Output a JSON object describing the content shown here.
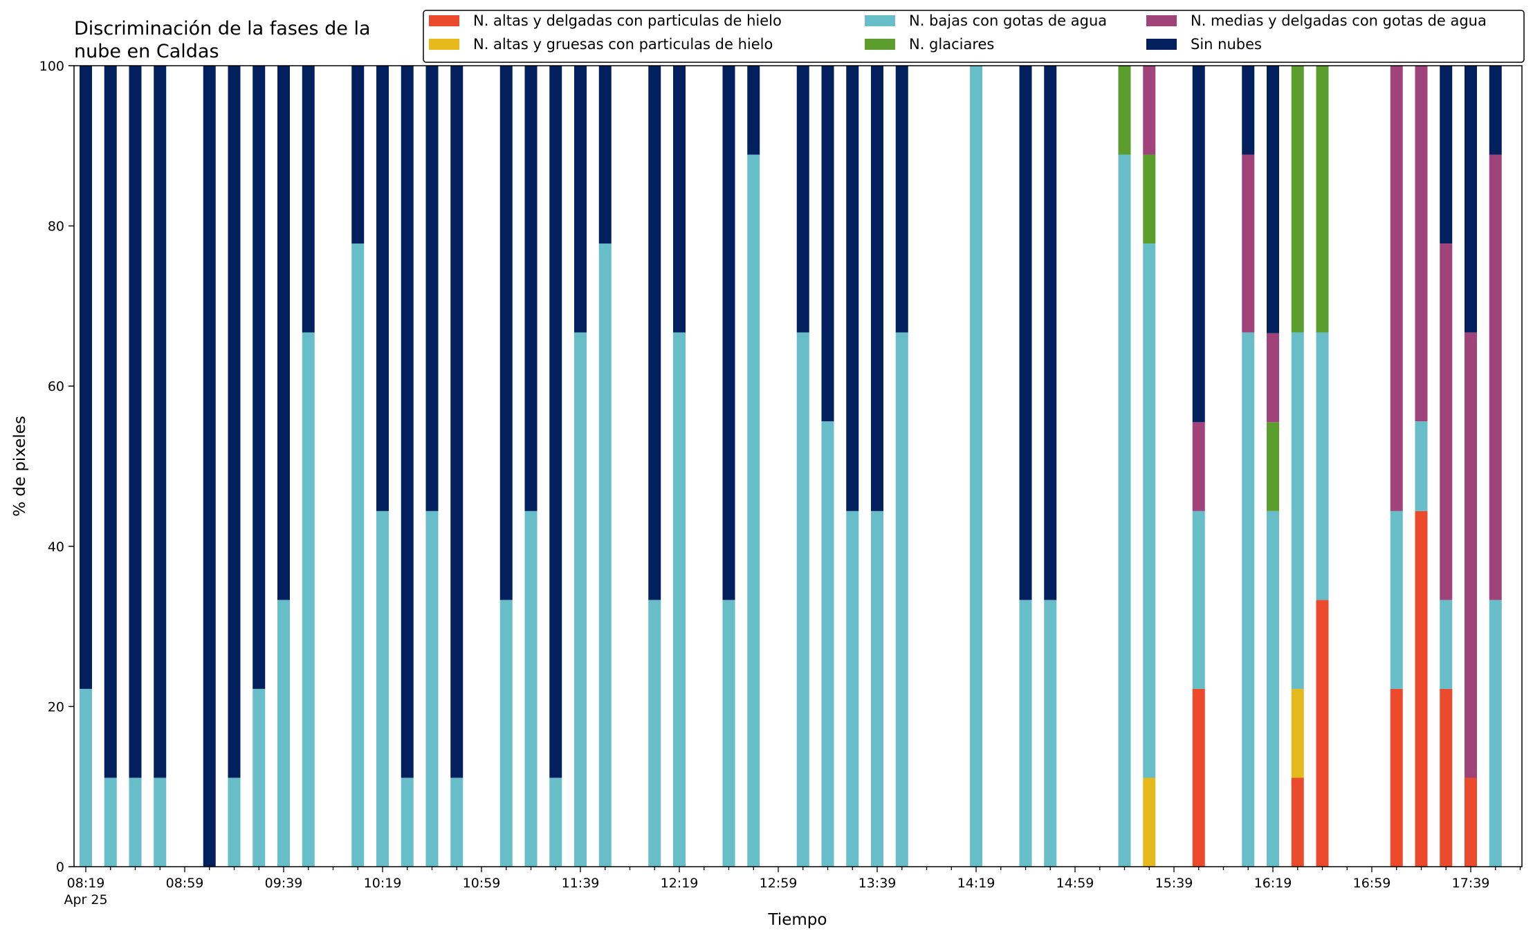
{
  "chart_data": {
    "type": "bar",
    "stacked": true,
    "title": "Discriminación de la fases de la\nnube en Caldas",
    "xlabel": "Tiempo",
    "ylabel": "% de pixeles",
    "ylim": [
      0,
      100
    ],
    "yticks": [
      0,
      20,
      40,
      60,
      80,
      100
    ],
    "x_tick_labels": [
      {
        "time": "08:19",
        "sub": "Apr 25"
      },
      {
        "time": "08:59"
      },
      {
        "time": "09:39"
      },
      {
        "time": "10:19"
      },
      {
        "time": "10:59"
      },
      {
        "time": "11:39"
      },
      {
        "time": "12:19"
      },
      {
        "time": "12:59"
      },
      {
        "time": "13:39"
      },
      {
        "time": "14:19"
      },
      {
        "time": "14:59"
      },
      {
        "time": "15:39"
      },
      {
        "time": "16:19"
      },
      {
        "time": "16:59"
      },
      {
        "time": "17:39"
      }
    ],
    "x_start": "08:19",
    "x_end": "18:04",
    "interval_minutes": 10,
    "legend_position": "top-right",
    "grid": false,
    "series": [
      {
        "name": "N. altas y delgadas con particulas de hielo",
        "color": "#EB4A2C"
      },
      {
        "name": "N. altas y gruesas con particulas de hielo",
        "color": "#E5B81C"
      },
      {
        "name": "N. bajas con gotas de agua",
        "color": "#67BDC8"
      },
      {
        "name": "N. glaciares",
        "color": "#5C9E2E"
      },
      {
        "name": "N. medias y delgadas con gotas de agua",
        "color": "#A0437A"
      },
      {
        "name": "Sin nubes",
        "color": "#03205E"
      }
    ],
    "legend_order": [
      "N. altas y delgadas con particulas de hielo",
      "N. bajas con gotas de agua",
      "N. medias y delgadas con gotas de agua",
      "N. altas y gruesas con particulas de hielo",
      "N. glaciares",
      "Sin nubes"
    ],
    "bars": [
      {
        "time": "08:19",
        "values": [
          0,
          0,
          22.2,
          0,
          0,
          77.8
        ]
      },
      {
        "time": "08:29",
        "values": [
          0,
          0,
          11.1,
          0,
          0,
          88.9
        ]
      },
      {
        "time": "08:39",
        "values": [
          0,
          0,
          11.1,
          0,
          0,
          88.9
        ]
      },
      {
        "time": "08:49",
        "values": [
          0,
          0,
          11.1,
          0,
          0,
          88.9
        ]
      },
      {
        "time": "09:09",
        "values": [
          0,
          0,
          0,
          0,
          0,
          100
        ]
      },
      {
        "time": "09:19",
        "values": [
          0,
          0,
          11.1,
          0,
          0,
          88.9
        ]
      },
      {
        "time": "09:29",
        "values": [
          0,
          0,
          22.2,
          0,
          0,
          77.8
        ]
      },
      {
        "time": "09:39",
        "values": [
          0,
          0,
          33.3,
          0,
          0,
          66.7
        ]
      },
      {
        "time": "09:49",
        "values": [
          0,
          0,
          66.7,
          0,
          0,
          33.3
        ]
      },
      {
        "time": "10:09",
        "values": [
          0,
          0,
          77.8,
          0,
          0,
          22.2
        ]
      },
      {
        "time": "10:19",
        "values": [
          0,
          0,
          44.4,
          0,
          0,
          55.6
        ]
      },
      {
        "time": "10:29",
        "values": [
          0,
          0,
          11.1,
          0,
          0,
          88.9
        ]
      },
      {
        "time": "10:39",
        "values": [
          0,
          0,
          44.4,
          0,
          0,
          55.6
        ]
      },
      {
        "time": "10:49",
        "values": [
          0,
          0,
          11.1,
          0,
          0,
          88.9
        ]
      },
      {
        "time": "11:09",
        "values": [
          0,
          0,
          33.3,
          0,
          0,
          66.7
        ]
      },
      {
        "time": "11:19",
        "values": [
          0,
          0,
          44.4,
          0,
          0,
          55.6
        ]
      },
      {
        "time": "11:29",
        "values": [
          0,
          0,
          11.1,
          0,
          0,
          88.9
        ]
      },
      {
        "time": "11:39",
        "values": [
          0,
          0,
          66.7,
          0,
          0,
          33.3
        ]
      },
      {
        "time": "11:49",
        "values": [
          0,
          0,
          77.8,
          0,
          0,
          22.2
        ]
      },
      {
        "time": "12:09",
        "values": [
          0,
          0,
          33.3,
          0,
          0,
          66.7
        ]
      },
      {
        "time": "12:19",
        "values": [
          0,
          0,
          66.7,
          0,
          0,
          33.3
        ]
      },
      {
        "time": "12:39",
        "values": [
          0,
          0,
          33.3,
          0,
          0,
          66.7
        ]
      },
      {
        "time": "12:49",
        "values": [
          0,
          0,
          88.9,
          0,
          0,
          11.1
        ]
      },
      {
        "time": "13:09",
        "values": [
          0,
          0,
          66.7,
          0,
          0,
          33.3
        ]
      },
      {
        "time": "13:19",
        "values": [
          0,
          0,
          55.6,
          0,
          0,
          44.4
        ]
      },
      {
        "time": "13:29",
        "values": [
          0,
          0,
          44.4,
          0,
          0,
          55.6
        ]
      },
      {
        "time": "13:39",
        "values": [
          0,
          0,
          44.4,
          0,
          0,
          55.6
        ]
      },
      {
        "time": "13:49",
        "values": [
          0,
          0,
          66.7,
          0,
          0,
          33.3
        ]
      },
      {
        "time": "14:19",
        "values": [
          0,
          0,
          100,
          0,
          0,
          0
        ]
      },
      {
        "time": "14:39",
        "values": [
          0,
          0,
          33.3,
          0,
          0,
          66.7
        ]
      },
      {
        "time": "14:49",
        "values": [
          0,
          0,
          33.3,
          0,
          0,
          66.7
        ]
      },
      {
        "time": "15:19",
        "values": [
          0,
          0,
          88.9,
          11.1,
          0,
          0
        ]
      },
      {
        "time": "15:29",
        "values": [
          0,
          11.1,
          66.7,
          11.1,
          11.1,
          0
        ]
      },
      {
        "time": "15:49",
        "values": [
          22.2,
          0,
          22.2,
          0,
          11.1,
          44.5
        ]
      },
      {
        "time": "16:09",
        "values": [
          0,
          0,
          66.7,
          0,
          22.2,
          11.1
        ]
      },
      {
        "time": "16:19",
        "values": [
          0,
          0,
          44.4,
          11.1,
          11.1,
          33.4
        ]
      },
      {
        "time": "16:29",
        "values": [
          11.1,
          11.1,
          44.5,
          33.3,
          0,
          0
        ]
      },
      {
        "time": "16:39",
        "values": [
          33.3,
          0,
          33.4,
          33.3,
          0,
          0
        ]
      },
      {
        "time": "17:09",
        "values": [
          22.2,
          0,
          22.2,
          0,
          55.6,
          0
        ]
      },
      {
        "time": "17:19",
        "values": [
          44.4,
          0,
          11.2,
          0,
          44.4,
          0
        ]
      },
      {
        "time": "17:29",
        "values": [
          22.2,
          0,
          11.1,
          0,
          44.5,
          22.2
        ]
      },
      {
        "time": "17:39",
        "values": [
          11.1,
          0,
          0,
          0,
          55.6,
          33.3
        ]
      },
      {
        "time": "17:49",
        "values": [
          0,
          0,
          33.3,
          0,
          55.6,
          11.1
        ]
      }
    ]
  }
}
